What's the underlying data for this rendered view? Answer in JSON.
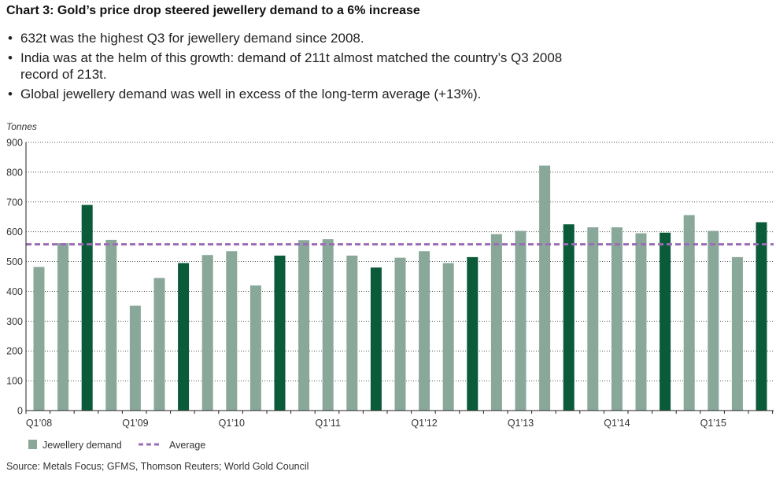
{
  "title": "Chart 3: Gold’s price drop steered jewellery demand to a 6% increase",
  "bullets": [
    "632t was the highest Q3 for jewellery demand since 2008.",
    "India was at the helm of this growth: demand of 211t almost matched the country’s Q3 2008 record of 213t.",
    "Global jewellery demand was well in excess of the long-term average (+13%)."
  ],
  "source": "Source: Metals Focus; GFMS, Thomson Reuters; World Gold Council",
  "chart_data": {
    "type": "bar",
    "ylabel": "Tonnes",
    "ylim": [
      0,
      900
    ],
    "yticks": [
      0,
      100,
      200,
      300,
      400,
      500,
      600,
      700,
      800,
      900
    ],
    "grid": true,
    "legend_placement": "bottom-left",
    "tick_labels": [
      "Q1’08",
      "Q1’09",
      "Q1’10",
      "Q1’11",
      "Q1’12",
      "Q1’13",
      "Q1’14",
      "Q1’15"
    ],
    "series": [
      {
        "name": "Jewellery demand",
        "type": "bar",
        "color": "#8aa89a",
        "highlight_color": "#0b5a3a",
        "highlight_quarter": "Q3",
        "values": [
          482,
          562,
          690,
          573,
          352,
          445,
          495,
          522,
          535,
          420,
          520,
          572,
          575,
          520,
          480,
          513,
          535,
          495,
          515,
          592,
          603,
          822,
          625,
          615,
          615,
          595,
          597,
          656,
          603,
          515,
          632
        ]
      },
      {
        "name": "Average",
        "type": "line",
        "style": "dashed",
        "color": "#9b6cb5",
        "value": 558
      }
    ]
  }
}
